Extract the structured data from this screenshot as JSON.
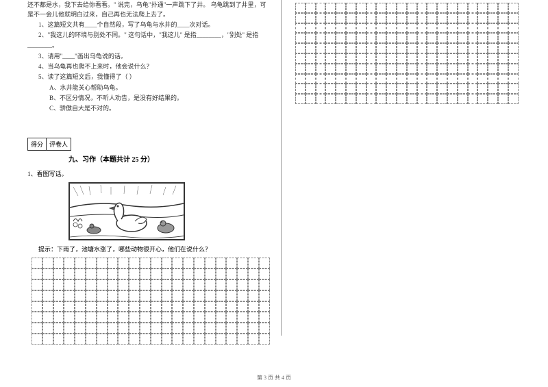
{
  "passage": {
    "line1": "还不都是水，我下去给你看看。\" 说完，乌龟\"扑通\"一声跳下了井。   乌龟跳到了井里，可",
    "line2": "是不一会儿他就明白过来，自己再也无法爬上去了。"
  },
  "questions": {
    "q1": "1、这篇短文共有____个自然段，写了乌龟与水井的____次对话。",
    "q2a": "2、\"我这儿的环境与别处不同。\" 这句话中，\"我这儿\" 是指________，\"别处\" 是指",
    "q2b": "________。",
    "q3": "3、请用\"____\"画出乌龟说的话。",
    "q4": "4、当乌龟再也爬不上来时，他会说什么？",
    "q5": "5、读了这篇短文后，我懂得了（    ）",
    "optA": "A、水井能关心帮助乌龟。",
    "optB": "B、不区分情况，不听人劝告，是没有好结果的。",
    "optC": "C、骄傲自大是不对的。"
  },
  "scoreTable": {
    "col1": "得分",
    "col2": "评卷人"
  },
  "section": {
    "title": "九、习作（本题共计 25 分）"
  },
  "writing": {
    "prompt": "1、看图写话。",
    "hint": "提示：下雨了，池塘水涨了，哪些动物很开心，他们在说什么？"
  },
  "footer": "第 3 页  共 4 页",
  "colors": {
    "text": "#333333",
    "border": "#333333",
    "gridBorder": "#888888",
    "background": "#ffffff"
  }
}
